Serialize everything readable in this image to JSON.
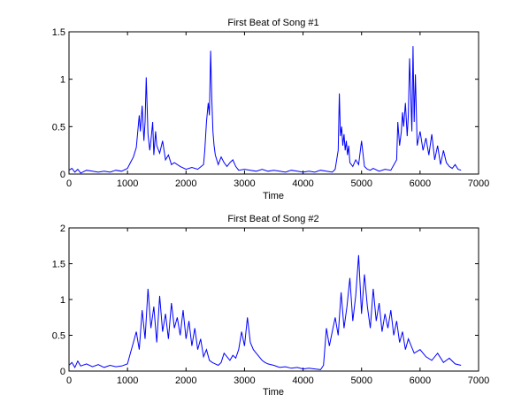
{
  "chart_data": [
    {
      "type": "line",
      "title": "First Beat of Song #1",
      "xlabel": "Time",
      "ylabel": "",
      "xlim": [
        0,
        7000
      ],
      "ylim": [
        0,
        1.5
      ],
      "xticks": [
        "0",
        "1000",
        "2000",
        "3000",
        "4000",
        "5000",
        "6000",
        "7000"
      ],
      "yticks": [
        "0",
        "0.5",
        "1",
        "1.5"
      ],
      "color": "#0000ff",
      "grid": false,
      "series": [
        {
          "x": [
            0,
            50,
            100,
            150,
            200,
            300,
            400,
            500,
            600,
            700,
            800,
            900,
            1000,
            1050,
            1100,
            1150,
            1200,
            1220,
            1250,
            1280,
            1300,
            1320,
            1350,
            1380,
            1400,
            1430,
            1450,
            1480,
            1500,
            1550,
            1600,
            1650,
            1700,
            1750,
            1800,
            1900,
            2000,
            2100,
            2200,
            2300,
            2320,
            2350,
            2380,
            2400,
            2420,
            2440,
            2460,
            2480,
            2500,
            2550,
            2600,
            2650,
            2700,
            2750,
            2800,
            2850,
            2900,
            3000,
            3100,
            3200,
            3300,
            3400,
            3500,
            3600,
            3700,
            3800,
            3900,
            4000,
            4100,
            4200,
            4300,
            4400,
            4500,
            4550,
            4600,
            4620,
            4640,
            4660,
            4680,
            4700,
            4720,
            4740,
            4760,
            4780,
            4800,
            4850,
            4900,
            4950,
            5000,
            5050,
            5100,
            5150,
            5200,
            5300,
            5400,
            5500,
            5600,
            5620,
            5650,
            5680,
            5700,
            5720,
            5750,
            5780,
            5800,
            5820,
            5840,
            5860,
            5880,
            5900,
            5920,
            5950,
            6000,
            6050,
            6100,
            6150,
            6200,
            6250,
            6300,
            6350,
            6400,
            6450,
            6500,
            6550,
            6600,
            6650,
            6700
          ],
          "y": [
            0.04,
            0.06,
            0.02,
            0.05,
            0.01,
            0.04,
            0.03,
            0.02,
            0.03,
            0.02,
            0.04,
            0.03,
            0.06,
            0.12,
            0.18,
            0.28,
            0.62,
            0.45,
            0.72,
            0.35,
            0.55,
            1.02,
            0.42,
            0.25,
            0.35,
            0.55,
            0.2,
            0.45,
            0.3,
            0.22,
            0.35,
            0.15,
            0.2,
            0.1,
            0.12,
            0.08,
            0.05,
            0.07,
            0.05,
            0.1,
            0.25,
            0.55,
            0.75,
            0.62,
            1.3,
            0.8,
            0.45,
            0.3,
            0.2,
            0.1,
            0.18,
            0.12,
            0.08,
            0.12,
            0.15,
            0.08,
            0.04,
            0.05,
            0.04,
            0.03,
            0.05,
            0.03,
            0.04,
            0.03,
            0.02,
            0.04,
            0.03,
            0.02,
            0.03,
            0.02,
            0.04,
            0.03,
            0.02,
            0.05,
            0.25,
            0.85,
            0.4,
            0.5,
            0.3,
            0.42,
            0.25,
            0.35,
            0.2,
            0.3,
            0.12,
            0.08,
            0.15,
            0.1,
            0.35,
            0.08,
            0.05,
            0.04,
            0.06,
            0.03,
            0.05,
            0.04,
            0.15,
            0.55,
            0.3,
            0.45,
            0.65,
            0.5,
            0.75,
            0.4,
            0.62,
            1.22,
            0.85,
            0.45,
            1.35,
            0.55,
            1.05,
            0.3,
            0.45,
            0.25,
            0.38,
            0.2,
            0.42,
            0.15,
            0.3,
            0.1,
            0.25,
            0.12,
            0.08,
            0.06,
            0.1,
            0.05,
            0.04
          ]
        }
      ]
    },
    {
      "type": "line",
      "title": "First Beat of Song #2",
      "xlabel": "Time",
      "ylabel": "",
      "xlim": [
        0,
        7000
      ],
      "ylim": [
        0,
        2
      ],
      "xticks": [
        "0",
        "1000",
        "2000",
        "3000",
        "4000",
        "5000",
        "6000",
        "7000"
      ],
      "yticks": [
        "0",
        "0.5",
        "1",
        "1.5",
        "2"
      ],
      "color": "#0000ff",
      "grid": false,
      "series": [
        {
          "x": [
            0,
            50,
            100,
            150,
            200,
            300,
            400,
            500,
            600,
            700,
            800,
            900,
            1000,
            1050,
            1100,
            1150,
            1200,
            1250,
            1300,
            1350,
            1400,
            1450,
            1500,
            1550,
            1600,
            1650,
            1700,
            1750,
            1800,
            1850,
            1900,
            1950,
            2000,
            2050,
            2100,
            2150,
            2200,
            2250,
            2300,
            2350,
            2400,
            2450,
            2500,
            2550,
            2600,
            2650,
            2700,
            2750,
            2800,
            2850,
            2900,
            2950,
            3000,
            3050,
            3100,
            3150,
            3200,
            3250,
            3300,
            3350,
            3400,
            3500,
            3600,
            3700,
            3800,
            3900,
            4000,
            4100,
            4200,
            4300,
            4350,
            4400,
            4450,
            4500,
            4550,
            4600,
            4650,
            4700,
            4750,
            4800,
            4850,
            4900,
            4950,
            5000,
            5050,
            5100,
            5150,
            5200,
            5250,
            5300,
            5350,
            5400,
            5450,
            5500,
            5550,
            5600,
            5650,
            5700,
            5750,
            5800,
            5900,
            6000,
            6100,
            6200,
            6300,
            6400,
            6500,
            6600,
            6700
          ],
          "y": [
            0.08,
            0.12,
            0.05,
            0.14,
            0.07,
            0.1,
            0.06,
            0.09,
            0.05,
            0.08,
            0.06,
            0.07,
            0.1,
            0.25,
            0.4,
            0.55,
            0.3,
            0.85,
            0.45,
            1.15,
            0.6,
            0.9,
            0.4,
            1.05,
            0.55,
            0.8,
            0.45,
            0.95,
            0.6,
            0.75,
            0.5,
            0.85,
            0.45,
            0.7,
            0.35,
            0.6,
            0.3,
            0.45,
            0.2,
            0.3,
            0.15,
            0.12,
            0.1,
            0.08,
            0.12,
            0.25,
            0.2,
            0.15,
            0.22,
            0.18,
            0.3,
            0.55,
            0.35,
            0.75,
            0.4,
            0.3,
            0.25,
            0.2,
            0.15,
            0.12,
            0.1,
            0.08,
            0.05,
            0.06,
            0.04,
            0.05,
            0.03,
            0.04,
            0.03,
            0.02,
            0.08,
            0.6,
            0.35,
            0.55,
            0.75,
            0.5,
            1.1,
            0.6,
            0.9,
            1.3,
            0.7,
            1.05,
            1.62,
            0.8,
            1.35,
            0.9,
            0.6,
            1.15,
            0.7,
            0.95,
            0.55,
            0.8,
            0.6,
            0.85,
            0.5,
            0.7,
            0.4,
            0.55,
            0.3,
            0.45,
            0.25,
            0.3,
            0.2,
            0.15,
            0.25,
            0.12,
            0.18,
            0.1,
            0.08
          ]
        }
      ]
    }
  ]
}
